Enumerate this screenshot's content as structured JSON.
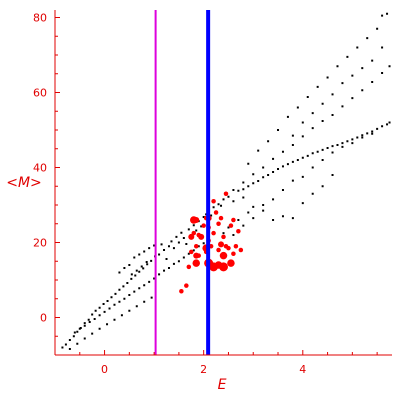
{
  "colors": {
    "axis": "#e00000",
    "background": "#ffffff",
    "scatter_small": "#000000",
    "scatter_highlight": "#ff0000",
    "vline_magenta": "#dd00dd",
    "vline_blue": "#0000ff"
  },
  "chart_data": {
    "type": "scatter",
    "title": "",
    "xlabel": "E",
    "ylabel": "<M>",
    "xlim": [
      -1.0,
      5.8
    ],
    "ylim": [
      -10.0,
      82.0
    ],
    "xticks": [
      0,
      2,
      4
    ],
    "yticks": [
      0,
      20,
      40,
      60,
      80
    ],
    "grid": false,
    "legend": "none",
    "vertical_lines": [
      {
        "x": 1.03,
        "color": "#dd00dd"
      },
      {
        "x": 2.09,
        "color": "#0000ff"
      }
    ],
    "series": [
      {
        "marker": "small-black-dot",
        "points": [
          [
            -0.85,
            -8.0
          ],
          [
            -0.78,
            -7.2
          ],
          [
            -0.7,
            -6.0
          ],
          [
            -0.62,
            -5.0
          ],
          [
            -0.55,
            -3.8
          ],
          [
            -0.48,
            -2.8
          ],
          [
            -0.4,
            -1.5
          ],
          [
            -0.32,
            -0.6
          ],
          [
            -0.25,
            0.8
          ],
          [
            -0.18,
            1.8
          ],
          [
            -0.1,
            2.6
          ],
          [
            -0.02,
            3.6
          ],
          [
            0.06,
            4.4
          ],
          [
            0.14,
            5.4
          ],
          [
            0.22,
            6.3
          ],
          [
            0.3,
            7.4
          ],
          [
            0.38,
            8.3
          ],
          [
            0.46,
            9.2
          ],
          [
            0.54,
            10.3
          ],
          [
            0.62,
            11.2
          ],
          [
            0.7,
            12.2
          ],
          [
            0.78,
            13.1
          ],
          [
            0.86,
            14.2
          ],
          [
            0.94,
            15.1
          ],
          [
            1.02,
            16.3
          ],
          [
            -0.6,
            -4.0
          ],
          [
            -0.5,
            -3.0
          ],
          [
            -0.4,
            -2.2
          ],
          [
            -0.3,
            -1.2
          ],
          [
            -0.2,
            -0.4
          ],
          [
            -0.1,
            0.6
          ],
          [
            0.0,
            1.5
          ],
          [
            0.1,
            2.4
          ],
          [
            0.2,
            3.4
          ],
          [
            0.3,
            4.2
          ],
          [
            0.4,
            5.0
          ],
          [
            0.5,
            6.0
          ],
          [
            0.6,
            6.9
          ],
          [
            0.7,
            7.8
          ],
          [
            0.8,
            8.6
          ],
          [
            0.9,
            9.5
          ],
          [
            1.0,
            10.4
          ],
          [
            -0.7,
            -8.4
          ],
          [
            -0.55,
            -7.0
          ],
          [
            -0.4,
            -5.6
          ],
          [
            -0.25,
            -4.3
          ],
          [
            -0.1,
            -3.0
          ],
          [
            0.05,
            -1.8
          ],
          [
            0.2,
            -0.6
          ],
          [
            0.35,
            0.6
          ],
          [
            0.5,
            1.8
          ],
          [
            0.65,
            3.0
          ],
          [
            0.8,
            4.2
          ],
          [
            0.95,
            5.3
          ],
          [
            0.3,
            12.0
          ],
          [
            0.4,
            13.2
          ],
          [
            0.5,
            14.0
          ],
          [
            0.55,
            11.5
          ],
          [
            0.65,
            12.5
          ],
          [
            0.75,
            13.6
          ],
          [
            0.85,
            14.8
          ],
          [
            0.6,
            16.0
          ],
          [
            0.7,
            16.8
          ],
          [
            0.8,
            17.6
          ],
          [
            0.9,
            18.5
          ],
          [
            1.0,
            19.2
          ],
          [
            1.1,
            16.8
          ],
          [
            1.15,
            19.5
          ],
          [
            1.2,
            18.0
          ],
          [
            1.25,
            15.6
          ],
          [
            1.3,
            19.0
          ],
          [
            1.35,
            20.3
          ],
          [
            1.4,
            18.5
          ],
          [
            1.45,
            21.5
          ],
          [
            1.5,
            20.0
          ],
          [
            1.55,
            22.6
          ],
          [
            1.6,
            21.2
          ],
          [
            1.65,
            19.6
          ],
          [
            1.7,
            23.5
          ],
          [
            1.75,
            22.0
          ],
          [
            1.8,
            24.6
          ],
          [
            1.85,
            23.2
          ],
          [
            1.9,
            25.7
          ],
          [
            1.95,
            24.3
          ],
          [
            2.0,
            26.8
          ],
          [
            2.05,
            27.5
          ],
          [
            2.1,
            28.6
          ],
          [
            2.15,
            27.2
          ],
          [
            2.2,
            29.4
          ],
          [
            2.25,
            28.2
          ],
          [
            2.3,
            30.2
          ],
          [
            1.1,
            11.5
          ],
          [
            1.2,
            12.5
          ],
          [
            1.3,
            13.2
          ],
          [
            1.4,
            14.3
          ],
          [
            1.5,
            15.0
          ],
          [
            1.6,
            16.0
          ],
          [
            1.7,
            17.0
          ],
          [
            1.8,
            17.9
          ],
          [
            1.9,
            19.0
          ],
          [
            2.0,
            19.8
          ],
          [
            2.35,
            29.8
          ],
          [
            2.4,
            31.5
          ],
          [
            2.5,
            32.2
          ],
          [
            2.6,
            31.0
          ],
          [
            2.7,
            33.8
          ],
          [
            2.8,
            34.2
          ],
          [
            2.9,
            35.0
          ],
          [
            3.0,
            35.8
          ],
          [
            3.1,
            36.4
          ],
          [
            3.2,
            37.4
          ],
          [
            3.3,
            38.0
          ],
          [
            3.4,
            38.8
          ],
          [
            3.5,
            39.6
          ],
          [
            3.6,
            40.3
          ],
          [
            3.7,
            40.9
          ],
          [
            3.8,
            41.5
          ],
          [
            3.9,
            42.0
          ],
          [
            4.0,
            42.6
          ],
          [
            4.1,
            43.1
          ],
          [
            4.2,
            43.8
          ],
          [
            4.3,
            44.2
          ],
          [
            4.4,
            44.7
          ],
          [
            4.5,
            45.2
          ],
          [
            4.6,
            45.7
          ],
          [
            4.7,
            46.0
          ],
          [
            4.8,
            46.5
          ],
          [
            4.9,
            47.0
          ],
          [
            5.0,
            47.5
          ],
          [
            5.1,
            48.0
          ],
          [
            5.2,
            48.6
          ],
          [
            5.3,
            49.1
          ],
          [
            5.4,
            49.6
          ],
          [
            5.5,
            50.3
          ],
          [
            5.6,
            51.0
          ],
          [
            5.7,
            51.5
          ],
          [
            5.75,
            52.0
          ],
          [
            2.6,
            34.0
          ],
          [
            2.8,
            36.0
          ],
          [
            3.0,
            38.2
          ],
          [
            3.2,
            40.0
          ],
          [
            3.4,
            42.3
          ],
          [
            3.6,
            44.2
          ],
          [
            3.8,
            46.0
          ],
          [
            4.0,
            48.3
          ],
          [
            4.2,
            50.5
          ],
          [
            4.4,
            52.4
          ],
          [
            4.6,
            54.0
          ],
          [
            4.8,
            56.3
          ],
          [
            5.0,
            58.5
          ],
          [
            5.2,
            60.6
          ],
          [
            5.4,
            62.8
          ],
          [
            5.6,
            65.2
          ],
          [
            5.75,
            67.0
          ],
          [
            2.9,
            41.0
          ],
          [
            3.1,
            44.5
          ],
          [
            3.3,
            47.0
          ],
          [
            3.5,
            50.0
          ],
          [
            3.7,
            53.5
          ],
          [
            3.9,
            56.0
          ],
          [
            4.1,
            58.8
          ],
          [
            4.3,
            61.5
          ],
          [
            4.5,
            64.0
          ],
          [
            4.7,
            67.0
          ],
          [
            4.9,
            69.5
          ],
          [
            5.1,
            72.0
          ],
          [
            5.3,
            74.5
          ],
          [
            5.5,
            77.0
          ],
          [
            5.6,
            80.5
          ],
          [
            5.7,
            81.0
          ],
          [
            2.4,
            22.5
          ],
          [
            2.5,
            24.0
          ],
          [
            2.6,
            22.0
          ],
          [
            2.7,
            26.0
          ],
          [
            2.8,
            24.5
          ],
          [
            2.9,
            28.0
          ],
          [
            3.0,
            26.5
          ],
          [
            3.2,
            30.0
          ],
          [
            3.4,
            31.5
          ],
          [
            3.6,
            34.0
          ],
          [
            3.8,
            36.5
          ],
          [
            4.0,
            37.5
          ],
          [
            4.2,
            40.0
          ],
          [
            4.4,
            42.0
          ],
          [
            4.6,
            44.0
          ],
          [
            4.8,
            45.5
          ],
          [
            5.0,
            46.5
          ],
          [
            5.2,
            48.0
          ],
          [
            5.4,
            49.0
          ],
          [
            2.8,
            32.0
          ],
          [
            3.0,
            29.5
          ],
          [
            3.2,
            28.5
          ],
          [
            3.4,
            26.0
          ],
          [
            3.6,
            27.0
          ],
          [
            3.8,
            26.5
          ],
          [
            4.0,
            30.5
          ],
          [
            4.2,
            33.0
          ],
          [
            4.4,
            35.0
          ],
          [
            4.6,
            38.0
          ],
          [
            3.8,
            48.5
          ],
          [
            4.0,
            52.0
          ],
          [
            4.2,
            54.5
          ],
          [
            4.4,
            57.0
          ],
          [
            4.6,
            59.5
          ],
          [
            4.8,
            62.5
          ],
          [
            5.0,
            64.5
          ],
          [
            5.2,
            66.5
          ],
          [
            5.4,
            68.5
          ],
          [
            5.6,
            72.0
          ]
        ]
      },
      {
        "marker": "red-dot",
        "points": [
          [
            1.55,
            7.0,
            3
          ],
          [
            1.65,
            8.5,
            3
          ],
          [
            1.7,
            13.5,
            3
          ],
          [
            1.75,
            17.5,
            3
          ],
          [
            1.75,
            21.5,
            4
          ],
          [
            1.8,
            22.5,
            3
          ],
          [
            1.85,
            26.0,
            4
          ],
          [
            1.85,
            19.0,
            3
          ],
          [
            1.9,
            16.5,
            3
          ],
          [
            1.9,
            22.0,
            3
          ],
          [
            1.95,
            21.5,
            4
          ],
          [
            2.0,
            24.5,
            3
          ],
          [
            2.05,
            17.5,
            3
          ],
          [
            2.05,
            26.5,
            3
          ],
          [
            2.1,
            20.5,
            3
          ],
          [
            2.1,
            24.0,
            3
          ],
          [
            2.15,
            19.0,
            3
          ],
          [
            2.2,
            22.5,
            3
          ],
          [
            2.25,
            28.0,
            3
          ],
          [
            2.3,
            18.0,
            3
          ],
          [
            2.3,
            25.0,
            3
          ],
          [
            2.35,
            26.5,
            3
          ],
          [
            2.4,
            21.5,
            3
          ],
          [
            2.45,
            19.0,
            3
          ],
          [
            2.5,
            18.5,
            3
          ],
          [
            2.55,
            24.5,
            3
          ],
          [
            2.6,
            26.0,
            3
          ],
          [
            2.65,
            19.0,
            3
          ],
          [
            2.7,
            23.0,
            3
          ],
          [
            2.45,
            33.0,
            3
          ],
          [
            1.8,
            26.0,
            5
          ],
          [
            1.85,
            14.5,
            5
          ],
          [
            1.85,
            16.5,
            4
          ],
          [
            2.05,
            18.5,
            5
          ],
          [
            2.1,
            14.5,
            6
          ],
          [
            2.2,
            13.5,
            6
          ],
          [
            2.3,
            14.0,
            5
          ],
          [
            2.4,
            16.5,
            5
          ],
          [
            2.4,
            13.5,
            6
          ],
          [
            2.55,
            14.5,
            5
          ],
          [
            2.1,
            26.5,
            4
          ],
          [
            2.2,
            31.0,
            3
          ],
          [
            2.35,
            19.5,
            4
          ],
          [
            2.6,
            17.0,
            3
          ],
          [
            2.75,
            18.0,
            3
          ]
        ]
      }
    ]
  }
}
